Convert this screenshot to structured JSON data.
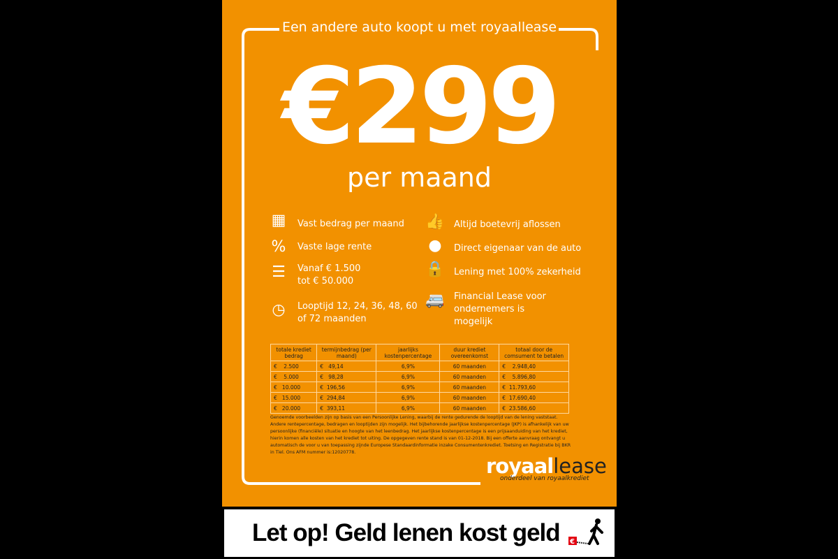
{
  "headline": "Een andere auto koopt u met royaallease",
  "price": "€299",
  "per": "per maand",
  "features_left": [
    {
      "icon": "calendar-icon",
      "text": "Vast bedrag per maand"
    },
    {
      "icon": "percent-icon",
      "text": "Vaste lage rente"
    },
    {
      "icon": "coins-icon",
      "text": "Vanaf € 1.500 tot € 50.000"
    },
    {
      "icon": "clock-icon",
      "text": "Looptijd 12, 24, 36, 48, 60 of 72 maanden"
    }
  ],
  "features_right": [
    {
      "icon": "thumbs-up-icon",
      "text": "Altijd boetevrij aflossen"
    },
    {
      "icon": "person-icon",
      "text": "Direct eigenaar van de auto"
    },
    {
      "icon": "lock-icon",
      "text": "Lening met 100% zekerheid"
    },
    {
      "icon": "van-icon",
      "text": "Financial Lease voor ondernemers is mogelijk"
    }
  ],
  "table": {
    "headers": [
      "totale krediet bedrag",
      "termijnbedrag (per maand)",
      "jaarlijks kostenpercentage",
      "duur krediet overeenkomst",
      "totaal door de comsument te betalen"
    ],
    "rows": [
      [
        "€    2.500",
        "€   49,14",
        "6,9%",
        "60 maanden",
        "€    2.948,40"
      ],
      [
        "€    5.000",
        "€   98,28",
        "6,9%",
        "60 maanden",
        "€    5.896,80"
      ],
      [
        "€   10.000",
        "€  196,56",
        "6,9%",
        "60 maanden",
        "€  11.793,60"
      ],
      [
        "€   15.000",
        "€  294,84",
        "6,9%",
        "60 maanden",
        "€  17.690,40"
      ],
      [
        "€   20.000",
        "€  393,11",
        "6,9%",
        "60 maanden",
        "€  23.586,60"
      ]
    ]
  },
  "note": "Genoemde voorbeelden zijn op basis van een Persoonlijke Lening, waarbij de rente gedurende de looptijd van de lening vaststaat. Andere rentepercentage, bedragen en looptijden zijn mogelijk. Het bijbehorende jaarlijkse kostenpercentage (JKP) is afhankelijk van uw persoonlijke (financiële) situatie en hoogte van het leenbedrag. Het jaarlijkse kostenpercentage is een prijsaanduiding van het krediet, hierin komen alle kosten van het krediet tot uiting. De opgegeven rente stand is van 01-12-2018.  Bij een offerte aanvraag ontvangt u automatisch de voor u van toepassing zijnde Europese Standaardinformatie inzake Consumentenkrediet. Toetsing en Registratie bij BKR in Tiel. Ons AFM nummer is:12020778.",
  "logo": {
    "part1": "royaal",
    "part2": "lease",
    "tagline": "onderdeel van royaalkrediet"
  },
  "warning": "Let op! Geld lenen kost geld",
  "colors": {
    "brand": "#F29100"
  }
}
